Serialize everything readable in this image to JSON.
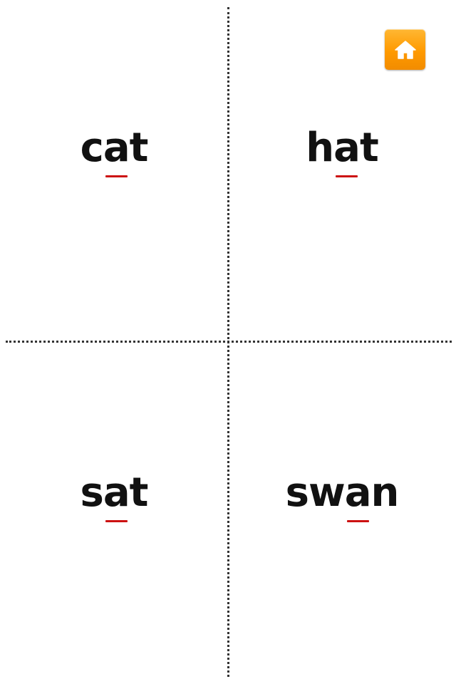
{
  "colors": {
    "underline": "#cc1111",
    "home_button": "#ff9a00",
    "text": "#111111",
    "divider": "#333333"
  },
  "home_button": {
    "icon": "home-icon"
  },
  "cards": [
    {
      "word": "cat",
      "prefix": "c",
      "focus": "a",
      "suffix": "t"
    },
    {
      "word": "hat",
      "prefix": "h",
      "focus": "a",
      "suffix": "t"
    },
    {
      "word": "sat",
      "prefix": "s",
      "focus": "a",
      "suffix": "t"
    },
    {
      "word": "swan",
      "prefix": "sw",
      "focus": "a",
      "suffix": "n"
    }
  ]
}
